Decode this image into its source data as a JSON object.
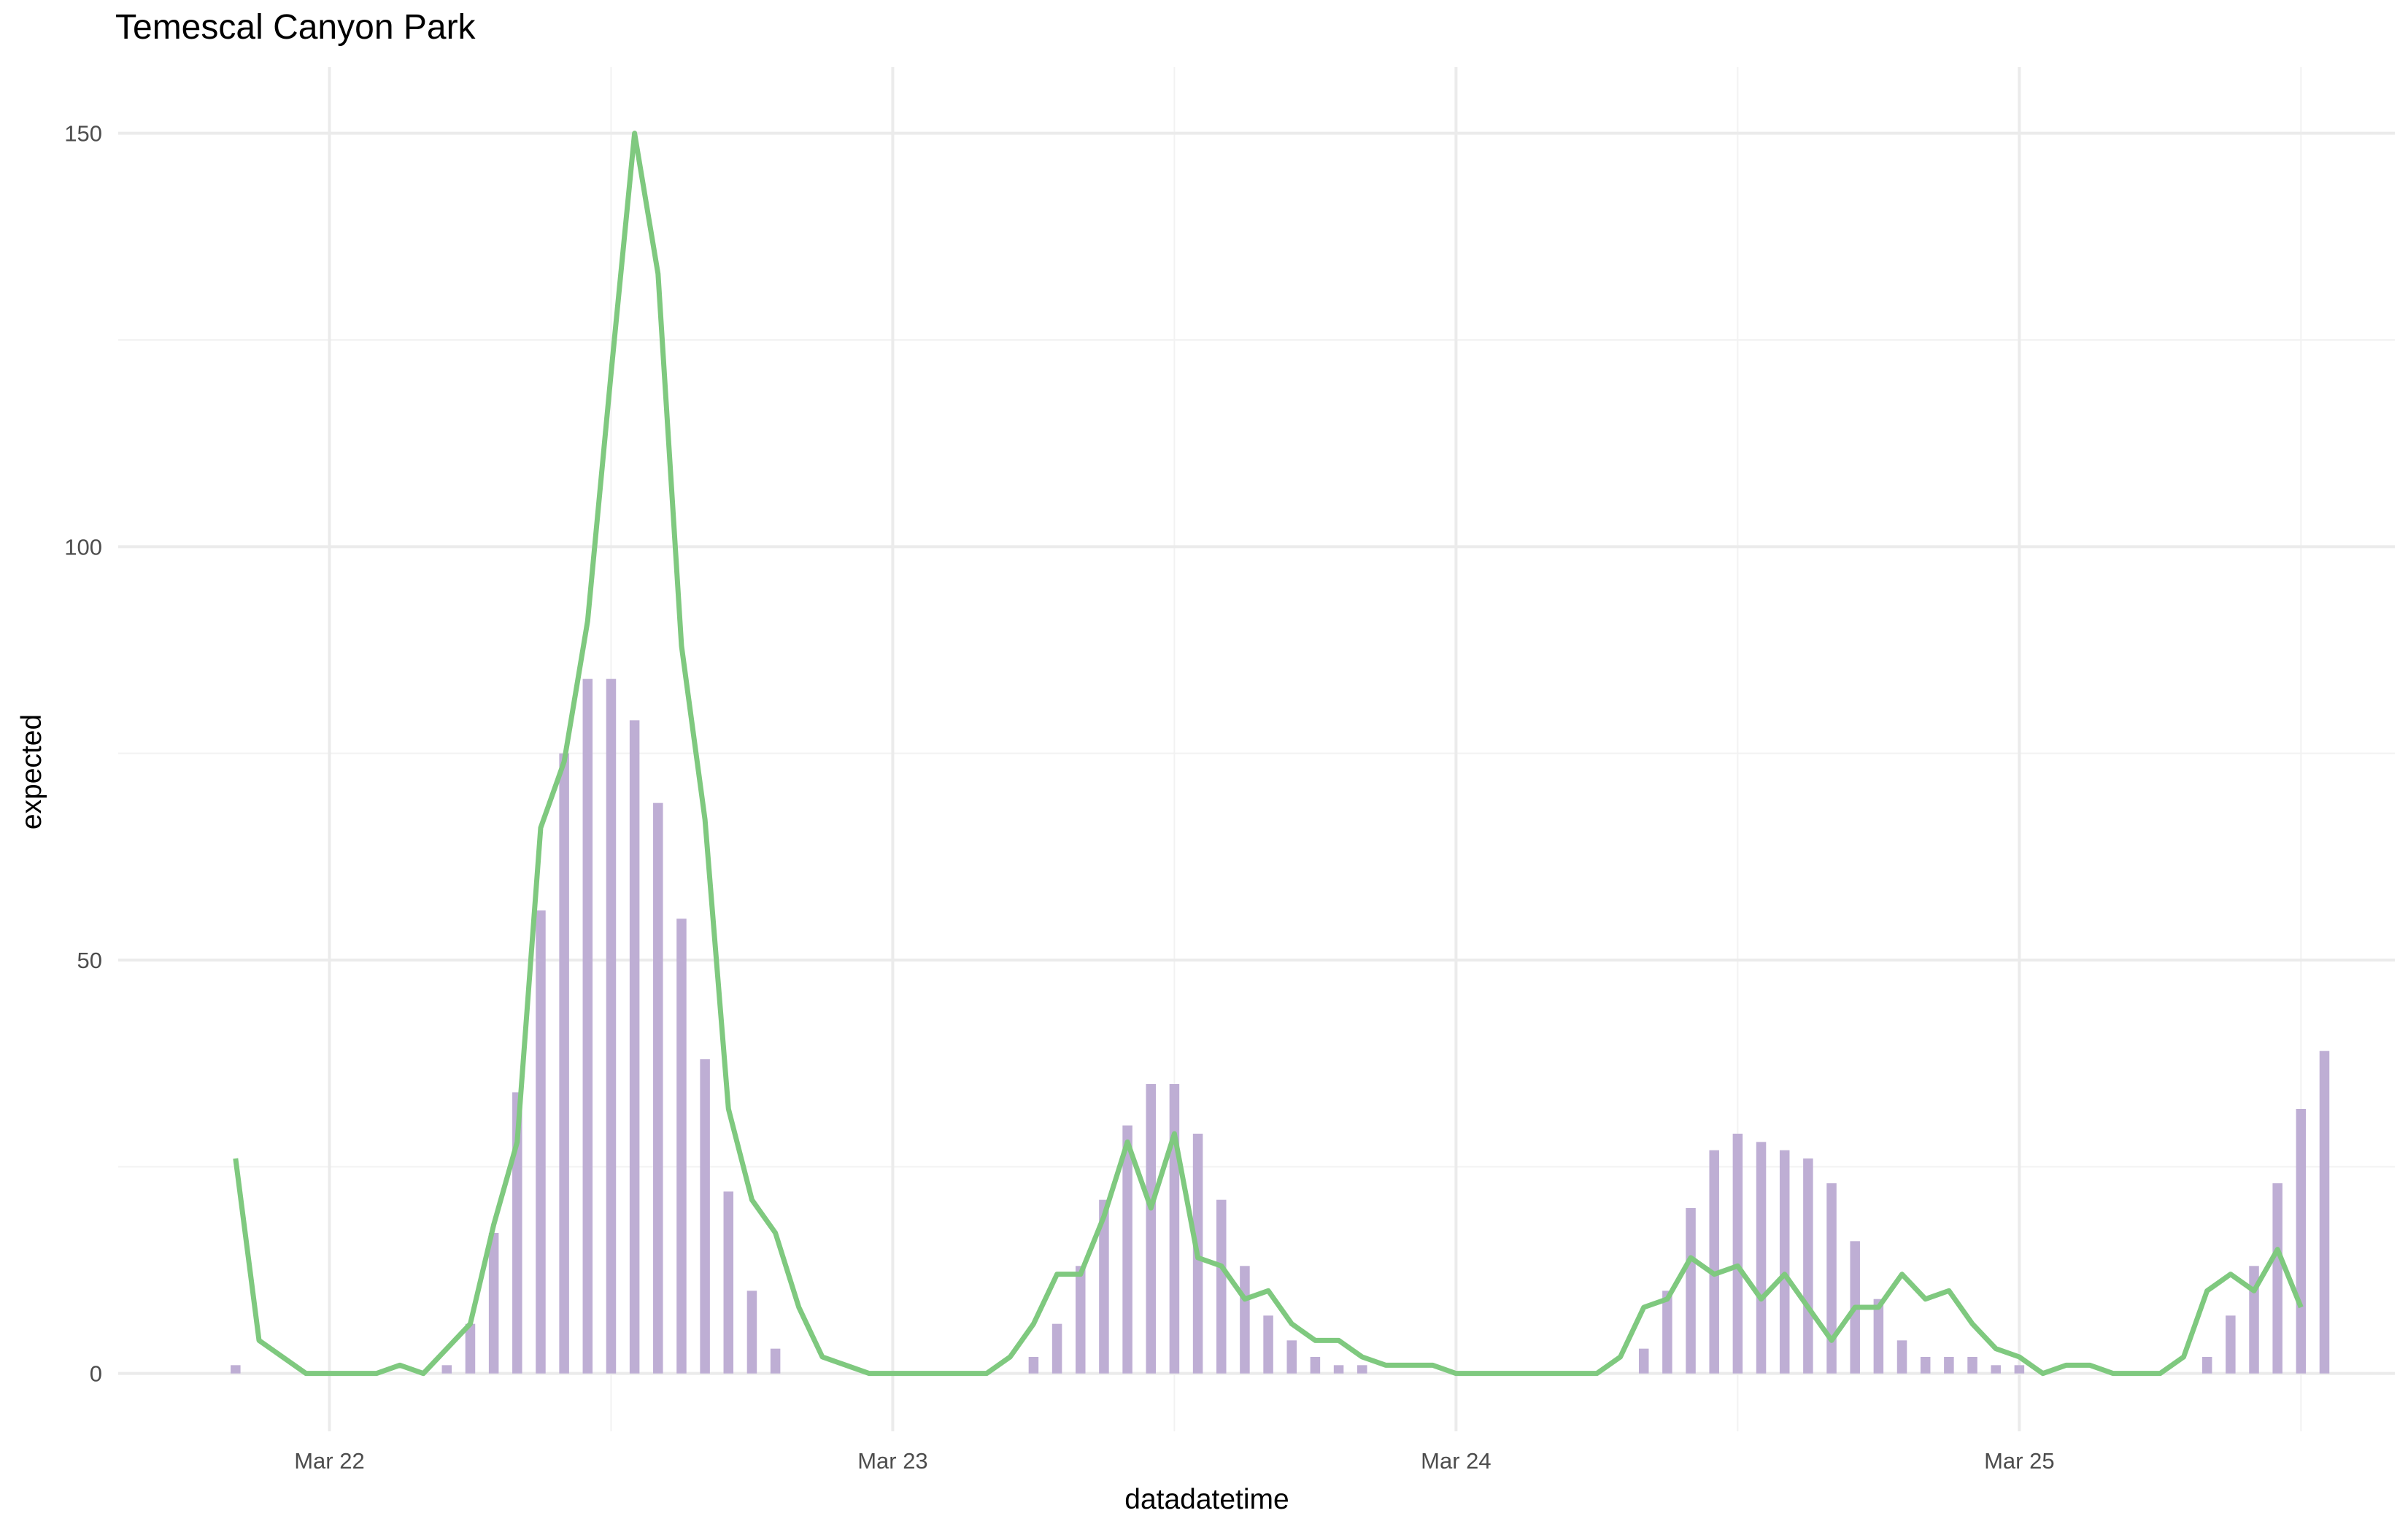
{
  "chart_data": {
    "type": "bar+line",
    "title": "Temescal Canyon Park",
    "xlabel": "datadatetime",
    "ylabel": "expected",
    "x_range": [
      "2024-03-21T15:00",
      "2024-03-25T16:00"
    ],
    "ylim": [
      -7,
      158
    ],
    "x_ticks": [
      {
        "date": "2024-03-22T00:00",
        "label": "Mar 22"
      },
      {
        "date": "2024-03-23T00:00",
        "label": "Mar 23"
      },
      {
        "date": "2024-03-24T00:00",
        "label": "Mar 24"
      },
      {
        "date": "2024-03-25T00:00",
        "label": "Mar 25"
      }
    ],
    "y_ticks": [
      0,
      50,
      100,
      150
    ],
    "y_minor_ticks": [
      25,
      75,
      125
    ],
    "grid": true,
    "bar_color": "#beaed4",
    "line_color": "#7fc97f",
    "x_start": "2024-03-21T20:00",
    "x_step_hours": 1,
    "bars": [
      1,
      0,
      0,
      0,
      0,
      0,
      0,
      0,
      0,
      1,
      6,
      17,
      34,
      56,
      75,
      84,
      84,
      79,
      69,
      55,
      38,
      22,
      10,
      3,
      0,
      0,
      0,
      0,
      0,
      0,
      0,
      0,
      0,
      0,
      2,
      6,
      13,
      21,
      30,
      35,
      35,
      29,
      21,
      13,
      7,
      4,
      2,
      1,
      1,
      0,
      0,
      0,
      0,
      0,
      0,
      0,
      0,
      0,
      0,
      0,
      3,
      10,
      20,
      27,
      29,
      28,
      27,
      26,
      23,
      16,
      9,
      4,
      2,
      2,
      2,
      1,
      1,
      0,
      0,
      0,
      0,
      0,
      0,
      0,
      2,
      7,
      13,
      23,
      32,
      39
    ],
    "line": [
      26,
      4,
      2,
      0,
      0,
      0,
      0,
      1,
      0,
      3,
      6,
      18,
      28,
      66,
      74,
      91,
      121,
      150,
      133,
      88,
      67,
      32,
      21,
      17,
      8,
      2,
      1,
      0,
      0,
      0,
      0,
      0,
      0,
      2,
      6,
      12,
      12,
      19,
      28,
      20,
      29,
      14,
      13,
      9,
      10,
      6,
      4,
      4,
      2,
      1,
      1,
      1,
      0,
      0,
      0,
      0,
      0,
      0,
      0,
      2,
      8,
      9,
      14,
      12,
      13,
      9,
      12,
      8,
      4,
      8,
      8,
      12,
      9,
      10,
      6,
      3,
      2,
      0,
      1,
      1,
      0,
      0,
      0,
      2,
      10,
      12,
      10,
      15,
      8
    ]
  }
}
